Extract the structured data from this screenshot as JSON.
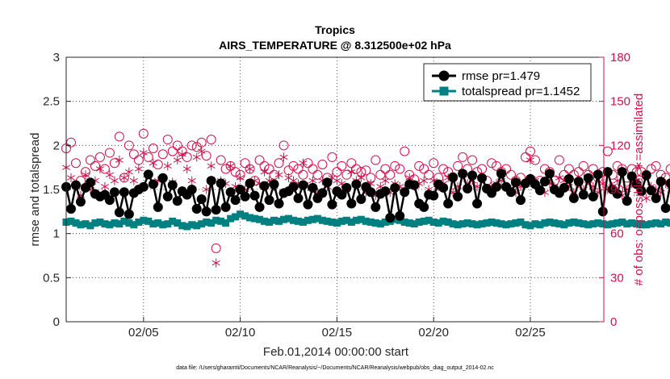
{
  "chart_data": {
    "type": "line",
    "title": "Tropics",
    "subtitle": "AIRS_TEMPERATURE @ 8.312500e+02 hPa",
    "xlabel": "Feb.01,2014 00:00:00 start",
    "ylabel": "rmse and totalspread",
    "y2label": "# of obs: o=possible; ∗=assimilated",
    "footnote": "data file: /Users/gharamti/Documents/NCAR/Reanalysis/~/Documents/NCAR/Reanalysis/webpub/obs_diag_output_2014-02.nc",
    "xlim": [
      1.0,
      28.8
    ],
    "xticks": [
      5,
      10,
      15,
      20,
      25
    ],
    "xtick_labels": [
      "02/05",
      "02/10",
      "02/15",
      "02/20",
      "02/25"
    ],
    "ylim": [
      0,
      3
    ],
    "yticks": [
      0,
      0.5,
      1,
      1.5,
      2,
      2.5,
      3
    ],
    "ytick_labels": [
      "0",
      "0.5",
      "1",
      "1.5",
      "2",
      "2.5",
      "3"
    ],
    "y2lim": [
      0,
      180
    ],
    "y2ticks": [
      0,
      30,
      60,
      90,
      120,
      150,
      180
    ],
    "y2tick_labels": [
      "0",
      "30",
      "60",
      "90",
      "120",
      "150",
      "180"
    ],
    "grid": true,
    "legend_position": "top-right",
    "x_start": 1.0,
    "x_step": 0.25,
    "series": [
      {
        "name": "rmse",
        "legend": "rmse pr=1.479",
        "axis": "left",
        "color": "#000000",
        "marker": "circle",
        "values": [
          1.53,
          1.28,
          1.55,
          1.36,
          1.52,
          1.58,
          1.45,
          1.42,
          1.44,
          1.38,
          1.47,
          1.24,
          1.47,
          1.22,
          1.46,
          1.5,
          1.53,
          1.67,
          1.56,
          1.3,
          1.63,
          1.42,
          1.55,
          1.37,
          1.48,
          1.44,
          1.5,
          1.28,
          1.39,
          1.25,
          1.6,
          1.27,
          1.57,
          1.3,
          1.47,
          1.38,
          1.5,
          1.42,
          1.57,
          1.43,
          1.3,
          1.54,
          1.38,
          1.56,
          1.34,
          1.46,
          1.48,
          1.53,
          1.4,
          1.55,
          1.33,
          1.52,
          1.4,
          1.46,
          1.58,
          1.33,
          1.48,
          1.44,
          1.52,
          1.34,
          1.56,
          1.39,
          1.53,
          1.47,
          1.3,
          1.45,
          1.48,
          1.18,
          1.52,
          1.2,
          1.47,
          1.56,
          1.55,
          1.34,
          1.3,
          1.44,
          1.43,
          1.56,
          1.52,
          1.34,
          1.64,
          1.42,
          1.68,
          1.51,
          1.66,
          1.34,
          1.63,
          1.51,
          1.46,
          1.53,
          1.68,
          1.53,
          1.47,
          1.58,
          1.38,
          1.57,
          1.62,
          1.56,
          1.49,
          1.59,
          1.68,
          1.5,
          1.46,
          1.52,
          1.62,
          1.4,
          1.59,
          1.44,
          1.63,
          1.42,
          1.67,
          1.25,
          1.7,
          1.5,
          1.45,
          1.7,
          1.37,
          1.65,
          1.56,
          1.48,
          1.66,
          1.49,
          1.4,
          1.59,
          1.29,
          1.57,
          1.5,
          1.63,
          1.35,
          1.58,
          1.45,
          1.6,
          1.39,
          1.69,
          1.27,
          1.52,
          1.4,
          1.6,
          1.55,
          1.42,
          1.58,
          1.48,
          1.65,
          1.34,
          1.55,
          1.4,
          1.66,
          1.2,
          1.55,
          1.36,
          1.58,
          1.46,
          1.35,
          1.56,
          1.42,
          1.6,
          1.3,
          1.66,
          1.42,
          1.69,
          1.47,
          1.59,
          1.69,
          1.38,
          1.67,
          1.52,
          1.41,
          1.54,
          1.66,
          1.44,
          1.52,
          1.49,
          1.64,
          1.32,
          1.59,
          1.37,
          1.45,
          1.5,
          1.45,
          1.62,
          1.47,
          1.56,
          1.32,
          1.53,
          1.66,
          1.51,
          1.4,
          1.63,
          1.32,
          1.66,
          1.52,
          1.45,
          1.68,
          1.7,
          1.58,
          1.58,
          1.58,
          1.64,
          1.54,
          1.58,
          1.47,
          1.63,
          1.42,
          1.39,
          1.67,
          1.61,
          1.5,
          1.62,
          1.49,
          1.48,
          1.3,
          1.54,
          1.55,
          1.35,
          1.54,
          1.49,
          1.37,
          1.55,
          1.61,
          1.33,
          1.38,
          1.48,
          1.54,
          1.46,
          1.72,
          1.6,
          1.51,
          1.47,
          1.53,
          1.44,
          1.62,
          1.45,
          1.56,
          1.42,
          1.59,
          1.47,
          1.55,
          1.46,
          1.53,
          1.38,
          1.55,
          1.45,
          1.72,
          1.4,
          1.69,
          1.35,
          1.65,
          1.7,
          1.4,
          1.42,
          1.55,
          1.6,
          1.68,
          1.63,
          1.57,
          1.72,
          1.53,
          1.58,
          1.44,
          1.57,
          1.61,
          1.66,
          1.65,
          1.68,
          1.77,
          1.54,
          1.63,
          1.72,
          1.64,
          1.61,
          1.72,
          1.53,
          1.63,
          1.62,
          1.66,
          1.7,
          1.46,
          1.68,
          1.72,
          1.43,
          1.49,
          1.52,
          1.67,
          1.68,
          1.77,
          1.45,
          1.15
        ]
      },
      {
        "name": "totalspread",
        "legend": "totalspread pr=1.1452",
        "axis": "left",
        "color": "#008080",
        "marker": "square",
        "values": [
          1.13,
          1.14,
          1.12,
          1.1,
          1.11,
          1.09,
          1.12,
          1.13,
          1.11,
          1.1,
          1.12,
          1.11,
          1.14,
          1.12,
          1.1,
          1.13,
          1.15,
          1.14,
          1.11,
          1.12,
          1.1,
          1.11,
          1.14,
          1.12,
          1.09,
          1.08,
          1.1,
          1.09,
          1.11,
          1.13,
          1.12,
          1.15,
          1.14,
          1.12,
          1.17,
          1.19,
          1.22,
          1.2,
          1.18,
          1.17,
          1.16,
          1.14,
          1.13,
          1.15,
          1.14,
          1.16,
          1.17,
          1.15,
          1.14,
          1.13,
          1.15,
          1.16,
          1.17,
          1.15,
          1.14,
          1.13,
          1.12,
          1.14,
          1.15,
          1.13,
          1.15,
          1.16,
          1.14,
          1.13,
          1.12,
          1.11,
          1.13,
          1.14,
          1.16,
          1.15,
          1.13,
          1.12,
          1.11,
          1.13,
          1.14,
          1.15,
          1.13,
          1.12,
          1.14,
          1.13,
          1.11,
          1.1,
          1.11,
          1.12,
          1.11,
          1.1,
          1.11,
          1.12,
          1.13,
          1.12,
          1.11,
          1.1,
          1.11,
          1.12,
          1.13,
          1.1,
          1.09,
          1.11,
          1.1,
          1.12,
          1.13,
          1.12,
          1.11,
          1.1,
          1.12,
          1.13,
          1.12,
          1.11,
          1.1,
          1.11,
          1.12,
          1.11,
          1.1,
          1.11,
          1.12,
          1.13,
          1.11,
          1.12,
          1.11,
          1.1,
          1.1,
          1.11,
          1.12,
          1.11,
          1.13,
          1.12,
          1.13,
          1.14,
          1.12,
          1.11,
          1.12,
          1.13,
          1.14,
          1.12,
          1.11,
          1.13,
          1.12,
          1.14,
          1.13,
          1.11,
          1.12,
          1.13,
          1.12,
          1.11,
          1.13,
          1.12,
          1.14,
          1.13,
          1.12,
          1.11,
          1.12,
          1.13,
          1.12,
          1.11,
          1.13,
          1.14,
          1.12,
          1.13,
          1.11,
          1.12,
          1.13,
          1.14,
          1.12,
          1.11,
          1.12,
          1.13,
          1.12,
          1.11,
          1.1,
          1.12,
          1.11,
          1.12,
          1.13,
          1.12,
          1.11,
          1.12,
          1.13,
          1.11,
          1.12,
          1.11,
          1.12,
          1.1,
          1.11,
          1.12,
          1.13,
          1.12,
          1.11,
          1.12,
          1.13,
          1.12,
          1.14,
          1.12,
          1.13,
          1.14,
          1.13,
          1.12,
          1.13,
          1.14,
          1.13,
          1.14,
          1.15,
          1.14,
          1.13,
          1.14,
          1.15,
          1.14,
          1.13,
          1.17,
          1.18,
          1.16,
          1.15,
          1.17,
          1.16,
          1.15,
          1.17,
          1.18,
          1.16,
          1.17,
          1.15,
          1.16,
          1.14,
          1.15,
          1.16,
          1.14,
          1.13,
          1.12,
          1.14,
          1.13,
          1.12,
          1.11,
          1.12,
          1.11,
          1.12,
          1.11,
          1.1,
          1.11,
          1.12,
          1.11,
          1.09,
          1.1,
          1.11,
          1.1,
          1.12,
          1.13,
          1.12,
          1.13,
          1.12,
          1.14,
          1.15,
          1.13,
          1.14,
          1.15,
          1.14,
          1.16,
          1.15,
          1.17,
          1.16,
          1.14,
          1.15,
          1.16,
          1.17,
          1.16,
          1.15,
          1.14,
          1.16,
          1.15,
          1.14,
          1.15,
          1.16,
          1.15,
          1.13,
          1.14,
          1.15,
          1.13,
          1.14,
          1.12,
          1.11,
          1.12,
          1.13,
          1.14,
          1.12,
          1.13,
          1.15,
          1.14,
          1.13,
          1.14,
          1.15,
          1.13,
          1.12,
          1.13,
          1.14,
          1.12,
          1.11,
          1.12,
          1.13,
          1.12,
          1.11,
          1.12,
          1.11
        ]
      },
      {
        "name": "possible obs",
        "axis": "right",
        "color": "#d0104c",
        "marker": "open-circle",
        "values": [
          118,
          122,
          108,
          96,
          102,
          110,
          106,
          112,
          104,
          115,
          108,
          126,
          98,
          120,
          114,
          110,
          128,
          112,
          118,
          107,
          114,
          124,
          116,
          120,
          116,
          112,
          120,
          119,
          122,
          113,
          124,
          50,
          110,
          104,
          106,
          102,
          100,
          108,
          104,
          96,
          110,
          106,
          104,
          100,
          108,
          120,
          103,
          106,
          104,
          100,
          108,
          104,
          100,
          107,
          98,
          112,
          102,
          106,
          100,
          108,
          104,
          102,
          103,
          98,
          110,
          100,
          104,
          100,
          106,
          104,
          116,
          100,
          97,
          106,
          104,
          100,
          108,
          98,
          104,
          102,
          98,
          106,
          112,
          104,
          110,
          102,
          104,
          96,
          108,
          106,
          102,
          104,
          100,
          96,
          98,
          112,
          116,
          110,
          96,
          104,
          102,
          96,
          110,
          100,
          104,
          100,
          102,
          106,
          100,
          104,
          98,
          102,
          116,
          100,
          106,
          104,
          98,
          104,
          102,
          102,
          100,
          104,
          106,
          100,
          98,
          104,
          102,
          100,
          114,
          102,
          104,
          100,
          98,
          106,
          100,
          102,
          100,
          104,
          98,
          100,
          104,
          100,
          100,
          103,
          102,
          104,
          98,
          102,
          100,
          104,
          106,
          102,
          98,
          104,
          100,
          108,
          100,
          104,
          104,
          100,
          106,
          98,
          100,
          106,
          102,
          104,
          98,
          108,
          100,
          104,
          102,
          100,
          96,
          104,
          100,
          106,
          102,
          98,
          104,
          100,
          106,
          104,
          102,
          110,
          104,
          100,
          106,
          102,
          100,
          98,
          104,
          102,
          110,
          108,
          106,
          104,
          100,
          98,
          104,
          102,
          106,
          100,
          98,
          104,
          106,
          102,
          100,
          104,
          112,
          100,
          102,
          108,
          106,
          104,
          100,
          106,
          102,
          104,
          110,
          108,
          104,
          106,
          112,
          108,
          114,
          110,
          108,
          112,
          100,
          106,
          110,
          108,
          112,
          104,
          100,
          108,
          114,
          112,
          116,
          110,
          106,
          104,
          108,
          114,
          106,
          110,
          112,
          108,
          106,
          110,
          104,
          102,
          106,
          108,
          112,
          110,
          104,
          108,
          110,
          112,
          106,
          104,
          102,
          108,
          98,
          112,
          116,
          114,
          110,
          128,
          112,
          126,
          110,
          108,
          118,
          114,
          110,
          112,
          106,
          104,
          108,
          106,
          108,
          126,
          114,
          108,
          0
        ]
      },
      {
        "name": "assimilated obs",
        "axis": "right",
        "color": "#d0104c",
        "marker": "asterisk",
        "values": [
          105,
          98,
          92,
          86,
          100,
          90,
          96,
          104,
          92,
          100,
          96,
          110,
          98,
          102,
          96,
          104,
          115,
          100,
          108,
          96,
          98,
          106,
          95,
          110,
          114,
          104,
          96,
          112,
          116,
          90,
          106,
          40,
          96,
          94,
          106,
          92,
          98,
          90,
          104,
          96,
          94,
          102,
          96,
          92,
          100,
          112,
          98,
          96,
          94,
          108,
          92,
          96,
          88,
          96,
          92,
          98,
          96,
          94,
          90,
          102,
          96,
          98,
          88,
          94,
          86,
          92,
          96,
          88,
          94,
          92,
          90,
          98,
          92,
          94,
          96,
          90,
          96,
          92,
          94,
          98,
          88,
          92,
          100,
          94,
          96,
          92,
          98,
          90,
          92,
          94,
          96,
          92,
          90,
          88,
          92,
          94,
          110,
          96,
          90,
          88,
          94,
          92,
          98,
          96,
          92,
          88,
          94,
          90,
          96,
          92,
          88,
          94,
          90,
          92,
          96,
          86,
          90,
          94,
          96,
          90,
          84,
          92,
          90,
          88,
          94,
          92,
          86,
          90,
          100,
          94,
          92,
          90,
          88,
          92,
          94,
          90,
          86,
          92,
          94,
          90,
          96,
          88,
          92,
          90,
          94,
          96,
          90,
          88,
          92,
          94,
          90,
          96,
          92,
          84,
          94,
          90,
          92,
          88,
          94,
          96,
          92,
          90,
          94,
          88,
          92,
          96,
          90,
          94,
          88,
          92,
          100,
          96,
          90,
          94,
          92,
          98,
          96,
          94,
          88,
          96,
          92,
          90,
          94,
          96,
          92,
          98,
          94,
          100,
          96,
          92,
          90,
          94,
          96,
          98,
          92,
          100,
          94,
          96,
          92,
          90,
          96,
          94,
          98,
          100,
          96,
          94,
          92,
          98,
          96,
          100,
          92,
          98,
          96,
          94,
          100,
          98,
          96,
          104,
          100,
          98,
          102,
          96,
          94,
          100,
          98,
          104,
          102,
          106,
          96,
          98,
          100,
          104,
          102,
          98,
          94,
          100,
          104,
          102,
          98,
          96,
          100,
          104,
          110,
          98,
          102,
          100,
          106,
          104,
          96,
          100,
          102,
          104,
          98,
          96,
          100,
          108,
          120,
          104,
          106,
          110,
          112,
          104,
          102,
          106,
          108,
          110,
          104,
          106,
          102,
          108,
          104,
          100,
          110,
          106,
          0
        ]
      }
    ]
  }
}
